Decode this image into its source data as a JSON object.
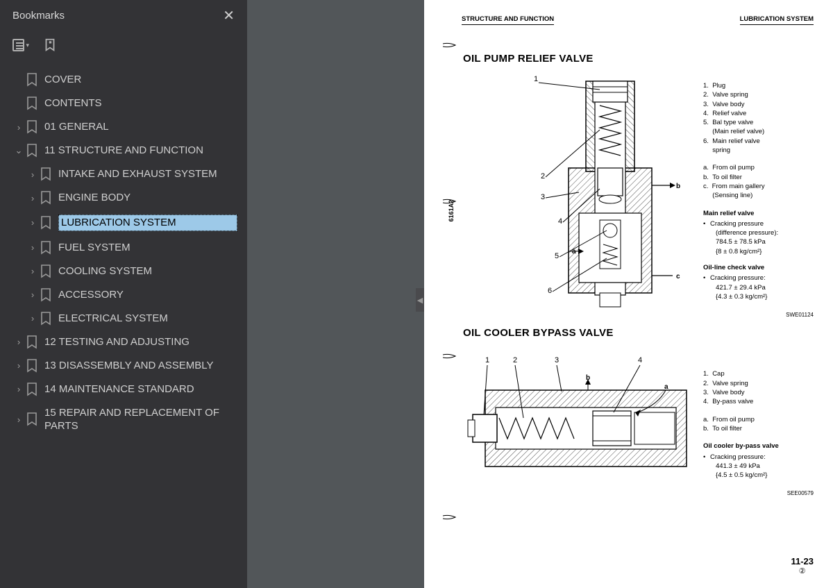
{
  "sidebar": {
    "title": "Bookmarks",
    "items": [
      {
        "label": "COVER",
        "level": 0,
        "expandable": false,
        "expanded": false,
        "selected": false
      },
      {
        "label": "CONTENTS",
        "level": 0,
        "expandable": false,
        "expanded": false,
        "selected": false
      },
      {
        "label": "01 GENERAL",
        "level": 0,
        "expandable": true,
        "expanded": false,
        "selected": false
      },
      {
        "label": "11 STRUCTURE AND FUNCTION",
        "level": 0,
        "expandable": true,
        "expanded": true,
        "selected": false
      },
      {
        "label": "INTAKE AND EXHAUST SYSTEM",
        "level": 1,
        "expandable": true,
        "expanded": false,
        "selected": false
      },
      {
        "label": "ENGINE BODY",
        "level": 1,
        "expandable": true,
        "expanded": false,
        "selected": false
      },
      {
        "label": "LUBRICATION SYSTEM",
        "level": 1,
        "expandable": true,
        "expanded": false,
        "selected": true
      },
      {
        "label": "FUEL SYSTEM",
        "level": 1,
        "expandable": true,
        "expanded": false,
        "selected": false
      },
      {
        "label": "COOLING SYSTEM",
        "level": 1,
        "expandable": true,
        "expanded": false,
        "selected": false
      },
      {
        "label": "ACCESSORY",
        "level": 1,
        "expandable": true,
        "expanded": false,
        "selected": false
      },
      {
        "label": "ELECTRICAL SYSTEM",
        "level": 1,
        "expandable": true,
        "expanded": false,
        "selected": false
      },
      {
        "label": "12 TESTING AND ADJUSTING",
        "level": 0,
        "expandable": true,
        "expanded": false,
        "selected": false
      },
      {
        "label": "13 DISASSEMBLY AND ASSEMBLY",
        "level": 0,
        "expandable": true,
        "expanded": false,
        "selected": false
      },
      {
        "label": "14 MAINTENANCE STANDARD",
        "level": 0,
        "expandable": true,
        "expanded": false,
        "selected": false
      },
      {
        "label": "15 REPAIR AND REPLACEMENT OF PARTS",
        "level": 0,
        "expandable": true,
        "expanded": false,
        "selected": false
      }
    ]
  },
  "page": {
    "header_left": "STRUCTURE AND FUNCTION",
    "header_right": "LUBRICATION SYSTEM",
    "section1": {
      "title": "OIL PUMP RELIEF VALVE",
      "side_code": "6161A2",
      "legend_numbered": [
        "Plug",
        "Valve spring",
        "Valve body",
        "Relief valve",
        "Bal type valve\n(Main relief valve)",
        "Main relief valve\nspring"
      ],
      "legend_lettered": [
        "From oil pump",
        "To oil filter",
        "From main gallery\n(Sensing line)"
      ],
      "p1_title": "Main relief valve",
      "p1_lines": [
        "Cracking pressure",
        "(difference pressure):",
        "784.5 ± 78.5 kPa",
        "{8 ± 0.8 kg/cm²}"
      ],
      "p2_title": "Oil-line check valve",
      "p2_lines": [
        "Cracking pressure:",
        "421.7 ± 29.4 kPa",
        "{4.3 ± 0.3 kg/cm²}"
      ],
      "fig_code": "SWE01124"
    },
    "section2": {
      "title": "OIL COOLER BYPASS VALVE",
      "legend_numbered": [
        "Cap",
        "Valve spring",
        "Valve body",
        "By-pass valve"
      ],
      "legend_lettered": [
        "From oil pump",
        "To oil filter"
      ],
      "p1_title": "Oil cooler by-pass valve",
      "p1_lines": [
        "Cracking pressure:",
        "441.3 ± 49 kPa",
        "{4.5 ± 0.5 kg/cm²}"
      ],
      "fig_code": "SEE00579"
    },
    "page_number": "11-23",
    "page_rev": "②"
  },
  "colors": {
    "sidebar_bg": "#333336",
    "gap_bg": "#525659",
    "highlight": "#9dc9e8",
    "text": "#d0d0d0"
  }
}
